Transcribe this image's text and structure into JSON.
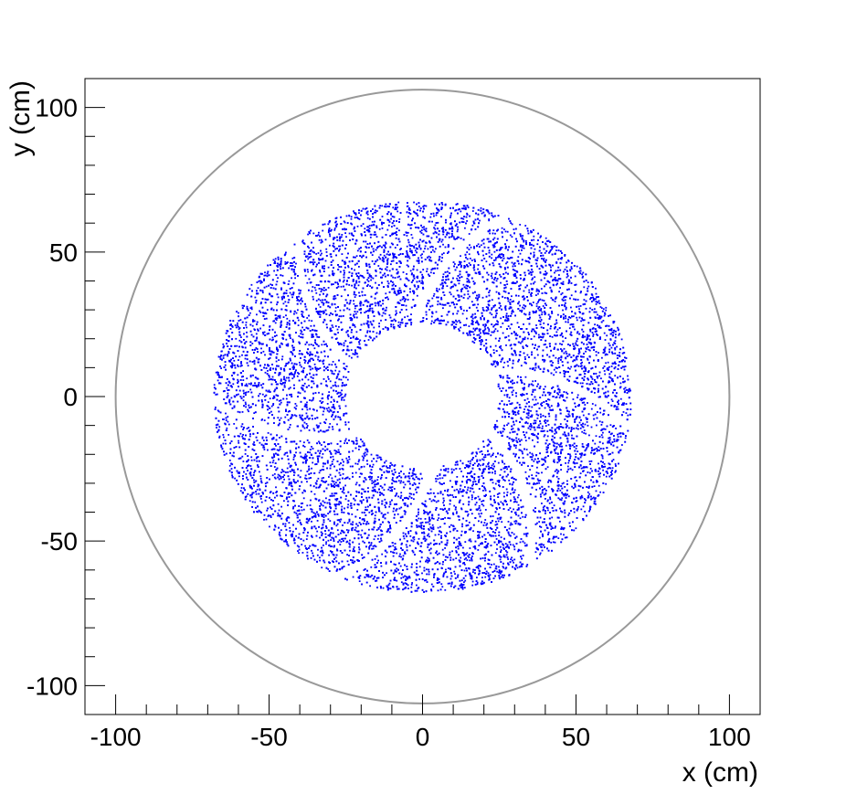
{
  "chart_data": {
    "type": "scatter",
    "title": "",
    "xlabel": "x (cm)",
    "ylabel": "y (cm)",
    "xlim": [
      -110,
      110
    ],
    "ylim": [
      -110,
      110
    ],
    "x_ticks": [
      -100,
      -50,
      0,
      50,
      100
    ],
    "y_ticks": [
      -100,
      -50,
      0,
      50,
      100
    ],
    "x_tick_labels": [
      "-100",
      "-50",
      "0",
      "50",
      "100"
    ],
    "y_tick_labels": [
      "-100",
      "-50",
      "0",
      "50",
      "100"
    ],
    "grid": false,
    "outline_circle": {
      "center": [
        0,
        0
      ],
      "radius": 100,
      "color": "#999999"
    },
    "series": [
      {
        "marker_color": "#0000ff",
        "distribution": "annulus of points, inner radius ~25, outer radius ~68, divided into 6 sectors by narrow curved gaps",
        "inner_radius": 25,
        "outer_radius": 68,
        "sector_count": 6
      }
    ]
  },
  "colors": {
    "points": "#0000ff",
    "circle": "#999999",
    "frame": "#000000"
  }
}
